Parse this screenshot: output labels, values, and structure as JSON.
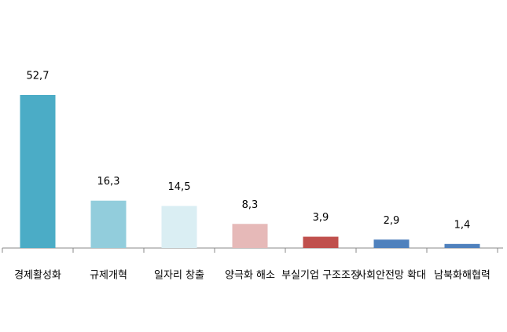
{
  "chart_data": {
    "type": "bar",
    "categories": [
      "경제활성화",
      "규제개혁",
      "일자리 창출",
      "양극화 해소",
      "부실기업 구조조정",
      "사회안전망 확대",
      "남북화해협력"
    ],
    "values": [
      52.7,
      16.3,
      14.5,
      8.3,
      3.9,
      2.9,
      1.4
    ],
    "value_labels": [
      "52,7",
      "16,3",
      "14,5",
      "8,3",
      "3,9",
      "2,9",
      "1,4"
    ],
    "colors": [
      "#4bacc6",
      "#92cddc",
      "#daeef3",
      "#e6b9b8",
      "#c0504d",
      "#4f81bd",
      "#4f81bd"
    ],
    "ylim": [
      0,
      60
    ]
  }
}
